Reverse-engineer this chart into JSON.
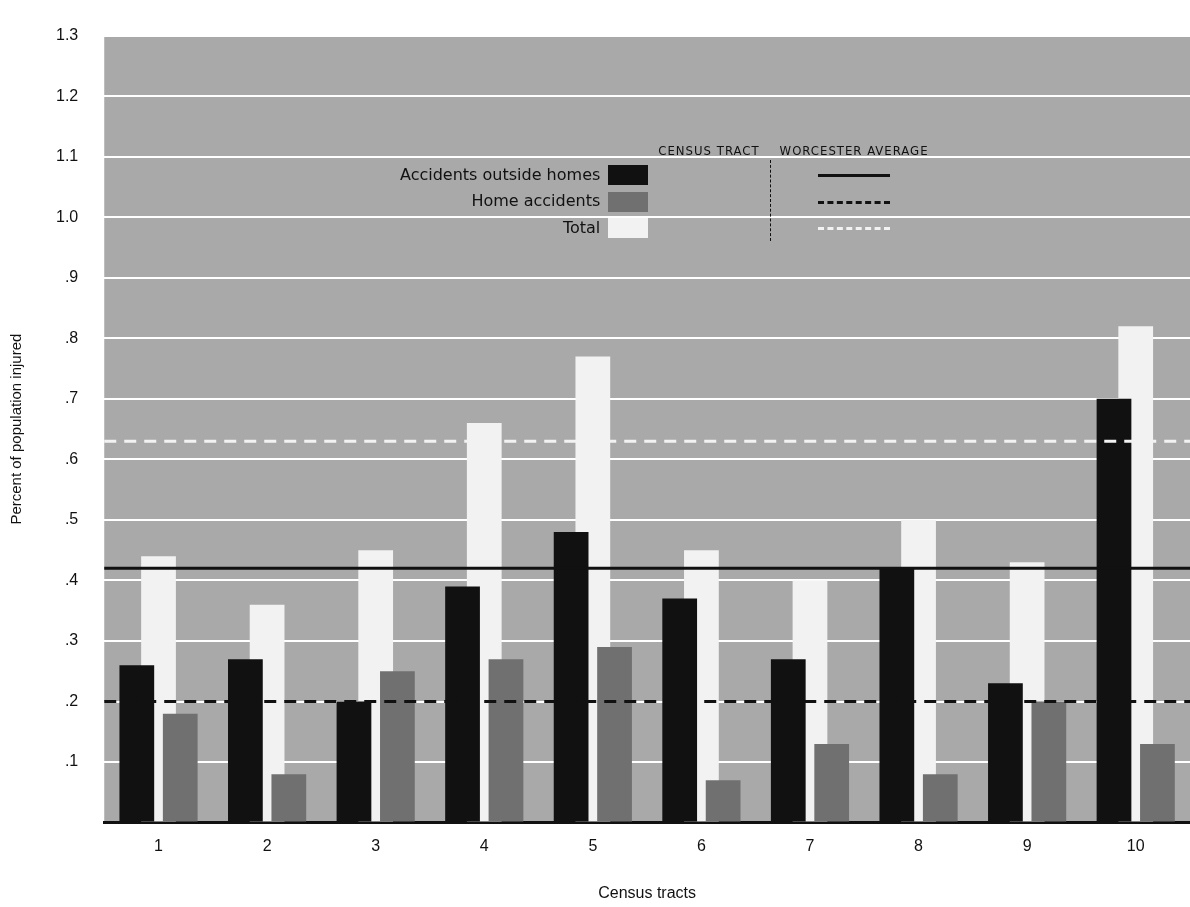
{
  "chart_data": {
    "type": "bar",
    "xlabel": "Census tracts",
    "ylabel": "Percent of population injured",
    "categories": [
      "1",
      "2",
      "3",
      "4",
      "5",
      "6",
      "7",
      "8",
      "9",
      "10"
    ],
    "series": [
      {
        "name": "Total",
        "color": "#f2f2f2",
        "values": [
          0.44,
          0.36,
          0.45,
          0.66,
          0.77,
          0.45,
          0.4,
          0.5,
          0.43,
          0.82
        ]
      },
      {
        "name": "Accidents outside homes",
        "color": "#111111",
        "values": [
          0.26,
          0.27,
          0.2,
          0.39,
          0.48,
          0.37,
          0.27,
          0.42,
          0.23,
          0.7
        ]
      },
      {
        "name": "Home accidents",
        "color": "#707070",
        "values": [
          0.18,
          0.08,
          0.25,
          0.27,
          0.29,
          0.07,
          0.13,
          0.08,
          0.2,
          0.13
        ]
      }
    ],
    "ref_lines": [
      {
        "axis": "y",
        "value": 0.63,
        "color": "#f2f2f2",
        "line_style": "dashed"
      },
      {
        "axis": "y",
        "value": 0.42,
        "color": "#111111",
        "line_style": "solid"
      },
      {
        "axis": "y",
        "value": 0.2,
        "color": "#111111",
        "line_style": "dashed"
      }
    ],
    "annotations": [
      "CENSUS TRACT",
      "WORCESTER AVERAGE"
    ],
    "ylim": [
      0,
      1.3
    ],
    "yticks": [
      {
        "value": 0,
        "label": null
      },
      {
        "value": 0.1,
        "label": ".1"
      },
      {
        "value": 0.2,
        "label": ".2"
      },
      {
        "value": 0.3,
        "label": ".3"
      },
      {
        "value": 0.4,
        "label": ".4"
      },
      {
        "value": 0.5,
        "label": ".5"
      },
      {
        "value": 0.6,
        "label": ".6"
      },
      {
        "value": 0.7,
        "label": ".7"
      },
      {
        "value": 0.8,
        "label": ".8"
      },
      {
        "value": 0.9,
        "label": ".9"
      },
      {
        "value": 1.0,
        "label": "1.0"
      },
      {
        "value": 1.1,
        "label": "1.1"
      },
      {
        "value": 1.2,
        "label": "1.2"
      },
      {
        "value": 1.3,
        "label": "1.3"
      }
    ],
    "grid": "y",
    "legend": "top"
  }
}
